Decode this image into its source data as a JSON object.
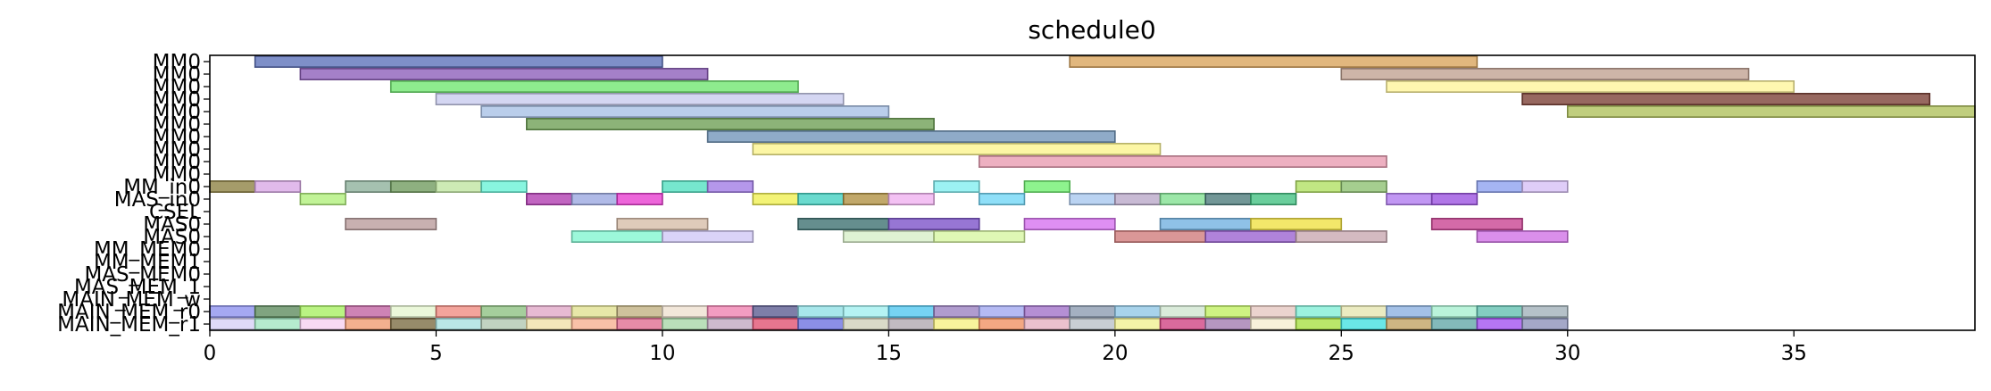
{
  "chart_data": {
    "type": "gantt",
    "title": "schedule0",
    "xlabel": "",
    "ylabel": "",
    "xlim": [
      0,
      39
    ],
    "x_ticks": [
      0,
      5,
      10,
      15,
      20,
      25,
      30,
      35
    ],
    "grid": false,
    "rows": [
      "MM0",
      "MM0",
      "MM0",
      "MM0",
      "MM0",
      "MM0",
      "MM0",
      "MM0",
      "MM0",
      "MM0",
      "MM_in0",
      "MAS_in0",
      "CSEL",
      "MAS0",
      "MAS0",
      "MM_MEM0",
      "MM_MEM1",
      "MAS_MEM0",
      "MAS_MEM_1",
      "MAIN_MEM_w",
      "MAIN_MEM_r0",
      "MAIN_MEM_r1"
    ],
    "tasks": [
      {
        "row": 0,
        "start": 1,
        "end": 10,
        "color": "#5a6fb8"
      },
      {
        "row": 0,
        "start": 19,
        "end": 28,
        "color": "#d9a35a"
      },
      {
        "row": 1,
        "start": 2,
        "end": 11,
        "color": "#8c5cb8"
      },
      {
        "row": 1,
        "start": 25,
        "end": 34,
        "color": "#c0a090"
      },
      {
        "row": 2,
        "start": 4,
        "end": 13,
        "color": "#6ee66e"
      },
      {
        "row": 2,
        "start": 26,
        "end": 35,
        "color": "#fff59a"
      },
      {
        "row": 3,
        "start": 5,
        "end": 14,
        "color": "#c8cbee"
      },
      {
        "row": 3,
        "start": 29,
        "end": 38,
        "color": "#7a3d33"
      },
      {
        "row": 4,
        "start": 6,
        "end": 15,
        "color": "#a6c0e6"
      },
      {
        "row": 4,
        "start": 30,
        "end": 39,
        "color": "#aec05a"
      },
      {
        "row": 5,
        "start": 7,
        "end": 16,
        "color": "#6b9e52"
      },
      {
        "row": 6,
        "start": 11,
        "end": 20,
        "color": "#6f93b8"
      },
      {
        "row": 7,
        "start": 12,
        "end": 21,
        "color": "#fbf48c"
      },
      {
        "row": 8,
        "start": 17,
        "end": 26,
        "color": "#e89ab0"
      },
      {
        "row": 10,
        "start": 0,
        "end": 1,
        "color": "#8c8040"
      },
      {
        "row": 10,
        "start": 1,
        "end": 2,
        "color": "#d9a6e6"
      },
      {
        "row": 10,
        "start": 3,
        "end": 4,
        "color": "#8cb09a"
      },
      {
        "row": 10,
        "start": 4,
        "end": 5,
        "color": "#6e9a5c"
      },
      {
        "row": 10,
        "start": 5,
        "end": 6,
        "color": "#bfe6a0"
      },
      {
        "row": 10,
        "start": 6,
        "end": 7,
        "color": "#66f2d6"
      },
      {
        "row": 10,
        "start": 10,
        "end": 11,
        "color": "#4fe0c0"
      },
      {
        "row": 10,
        "start": 11,
        "end": 12,
        "color": "#a07ae6"
      },
      {
        "row": 10,
        "start": 16,
        "end": 17,
        "color": "#80eef0"
      },
      {
        "row": 10,
        "start": 18,
        "end": 19,
        "color": "#6ef06e"
      },
      {
        "row": 10,
        "start": 24,
        "end": 25,
        "color": "#b0e060"
      },
      {
        "row": 10,
        "start": 25,
        "end": 26,
        "color": "#8cc070"
      },
      {
        "row": 10,
        "start": 28,
        "end": 29,
        "color": "#8ca0f0"
      },
      {
        "row": 10,
        "start": 29,
        "end": 30,
        "color": "#d6bff6"
      },
      {
        "row": 11,
        "start": 2,
        "end": 3,
        "color": "#b0f07a"
      },
      {
        "row": 11,
        "start": 7,
        "end": 8,
        "color": "#b03ab0"
      },
      {
        "row": 11,
        "start": 8,
        "end": 9,
        "color": "#9aa6e0"
      },
      {
        "row": 11,
        "start": 9,
        "end": 10,
        "color": "#e83ad0"
      },
      {
        "row": 11,
        "start": 12,
        "end": 13,
        "color": "#f0f050"
      },
      {
        "row": 11,
        "start": 13,
        "end": 14,
        "color": "#40d0c0"
      },
      {
        "row": 11,
        "start": 14,
        "end": 15,
        "color": "#b09040"
      },
      {
        "row": 11,
        "start": 15,
        "end": 16,
        "color": "#f0b0f0"
      },
      {
        "row": 11,
        "start": 17,
        "end": 18,
        "color": "#70d6f6"
      },
      {
        "row": 11,
        "start": 19,
        "end": 20,
        "color": "#a6c6ee"
      },
      {
        "row": 11,
        "start": 20,
        "end": 21,
        "color": "#b8a6c8"
      },
      {
        "row": 11,
        "start": 21,
        "end": 22,
        "color": "#80e090"
      },
      {
        "row": 11,
        "start": 22,
        "end": 23,
        "color": "#4a7a7a"
      },
      {
        "row": 11,
        "start": 23,
        "end": 24,
        "color": "#40c080"
      },
      {
        "row": 11,
        "start": 26,
        "end": 27,
        "color": "#b07af0"
      },
      {
        "row": 11,
        "start": 27,
        "end": 28,
        "color": "#9a50e0"
      },
      {
        "row": 13,
        "start": 3,
        "end": 5,
        "color": "#b89a9a"
      },
      {
        "row": 13,
        "start": 9,
        "end": 11,
        "color": "#d6bca6"
      },
      {
        "row": 13,
        "start": 13,
        "end": 15,
        "color": "#3a6e6e"
      },
      {
        "row": 13,
        "start": 15,
        "end": 17,
        "color": "#7a50c8"
      },
      {
        "row": 13,
        "start": 18,
        "end": 20,
        "color": "#d670f0"
      },
      {
        "row": 13,
        "start": 21,
        "end": 23,
        "color": "#70b0e0"
      },
      {
        "row": 13,
        "start": 23,
        "end": 25,
        "color": "#f0e040"
      },
      {
        "row": 13,
        "start": 27,
        "end": 29,
        "color": "#c84090"
      },
      {
        "row": 14,
        "start": 8,
        "end": 10,
        "color": "#80f6d0"
      },
      {
        "row": 14,
        "start": 10,
        "end": 12,
        "color": "#d0c6f6"
      },
      {
        "row": 14,
        "start": 14,
        "end": 16,
        "color": "#d6eec6"
      },
      {
        "row": 14,
        "start": 16,
        "end": 18,
        "color": "#d6f6a0"
      },
      {
        "row": 14,
        "start": 20,
        "end": 22,
        "color": "#d07a7a"
      },
      {
        "row": 14,
        "start": 22,
        "end": 24,
        "color": "#9a60d0"
      },
      {
        "row": 14,
        "start": 24,
        "end": 26,
        "color": "#c8a6b0"
      },
      {
        "row": 14,
        "start": 28,
        "end": 30,
        "color": "#d070e6"
      },
      {
        "row": 20,
        "start": 0,
        "end": 1,
        "color": "#8c90ee"
      },
      {
        "row": 20,
        "start": 1,
        "end": 2,
        "color": "#5c8a5c"
      },
      {
        "row": 20,
        "start": 2,
        "end": 3,
        "color": "#a6f060"
      },
      {
        "row": 20,
        "start": 3,
        "end": 4,
        "color": "#c060a0"
      },
      {
        "row": 20,
        "start": 4,
        "end": 5,
        "color": "#e6f6d0"
      },
      {
        "row": 20,
        "start": 5,
        "end": 6,
        "color": "#f08a80"
      },
      {
        "row": 20,
        "start": 6,
        "end": 7,
        "color": "#8cc080"
      },
      {
        "row": 20,
        "start": 7,
        "end": 8,
        "color": "#e0a6c6"
      },
      {
        "row": 20,
        "start": 8,
        "end": 9,
        "color": "#e0e090"
      },
      {
        "row": 20,
        "start": 9,
        "end": 10,
        "color": "#c0b080"
      },
      {
        "row": 20,
        "start": 10,
        "end": 11,
        "color": "#eee0d0"
      },
      {
        "row": 20,
        "start": 11,
        "end": 12,
        "color": "#f080b0"
      },
      {
        "row": 20,
        "start": 12,
        "end": 13,
        "color": "#5a5a90"
      },
      {
        "row": 20,
        "start": 13,
        "end": 14,
        "color": "#90e0e6"
      },
      {
        "row": 20,
        "start": 14,
        "end": 15,
        "color": "#a0f0f0"
      },
      {
        "row": 20,
        "start": 15,
        "end": 16,
        "color": "#50c6f0"
      },
      {
        "row": 20,
        "start": 16,
        "end": 17,
        "color": "#9a80c0"
      },
      {
        "row": 20,
        "start": 17,
        "end": 18,
        "color": "#a0a6f0"
      },
      {
        "row": 20,
        "start": 18,
        "end": 19,
        "color": "#a070c8"
      },
      {
        "row": 20,
        "start": 19,
        "end": 20,
        "color": "#8a9ab0"
      },
      {
        "row": 20,
        "start": 20,
        "end": 21,
        "color": "#90c6e6"
      },
      {
        "row": 20,
        "start": 21,
        "end": 22,
        "color": "#d0e6d0"
      },
      {
        "row": 20,
        "start": 22,
        "end": 23,
        "color": "#c0f060"
      },
      {
        "row": 20,
        "start": 23,
        "end": 24,
        "color": "#e6c6c0"
      },
      {
        "row": 20,
        "start": 24,
        "end": 25,
        "color": "#80eed6"
      },
      {
        "row": 20,
        "start": 25,
        "end": 26,
        "color": "#e6e6b0"
      },
      {
        "row": 20,
        "start": 26,
        "end": 27,
        "color": "#8ab0e0"
      },
      {
        "row": 20,
        "start": 27,
        "end": 28,
        "color": "#a6f0d0"
      },
      {
        "row": 20,
        "start": 28,
        "end": 29,
        "color": "#60c0b0"
      },
      {
        "row": 20,
        "start": 29,
        "end": 30,
        "color": "#a0b0b8"
      },
      {
        "row": 21,
        "start": 0,
        "end": 1,
        "color": "#d6d0f6"
      },
      {
        "row": 21,
        "start": 1,
        "end": 2,
        "color": "#a0e6c0"
      },
      {
        "row": 21,
        "start": 2,
        "end": 3,
        "color": "#f6d0f0"
      },
      {
        "row": 21,
        "start": 3,
        "end": 4,
        "color": "#f09a70"
      },
      {
        "row": 21,
        "start": 4,
        "end": 5,
        "color": "#7a6a40"
      },
      {
        "row": 21,
        "start": 5,
        "end": 6,
        "color": "#a6e0e0"
      },
      {
        "row": 21,
        "start": 6,
        "end": 7,
        "color": "#b0c6b0"
      },
      {
        "row": 21,
        "start": 7,
        "end": 8,
        "color": "#f0e0a6"
      },
      {
        "row": 21,
        "start": 8,
        "end": 9,
        "color": "#f6b090"
      },
      {
        "row": 21,
        "start": 9,
        "end": 10,
        "color": "#e06a90"
      },
      {
        "row": 21,
        "start": 10,
        "end": 11,
        "color": "#a6d6a6"
      },
      {
        "row": 21,
        "start": 11,
        "end": 12,
        "color": "#c0a6c0"
      },
      {
        "row": 21,
        "start": 12,
        "end": 13,
        "color": "#e05070"
      },
      {
        "row": 21,
        "start": 13,
        "end": 14,
        "color": "#6a70e0"
      },
      {
        "row": 21,
        "start": 14,
        "end": 15,
        "color": "#d0d0b8"
      },
      {
        "row": 21,
        "start": 15,
        "end": 16,
        "color": "#b0a6b0"
      },
      {
        "row": 21,
        "start": 16,
        "end": 17,
        "color": "#f6f080"
      },
      {
        "row": 21,
        "start": 17,
        "end": 18,
        "color": "#f09060"
      },
      {
        "row": 21,
        "start": 18,
        "end": 19,
        "color": "#e6b0c0"
      },
      {
        "row": 21,
        "start": 19,
        "end": 20,
        "color": "#b8c0c8"
      },
      {
        "row": 21,
        "start": 20,
        "end": 21,
        "color": "#f0f090"
      },
      {
        "row": 21,
        "start": 21,
        "end": 22,
        "color": "#d04080"
      },
      {
        "row": 21,
        "start": 22,
        "end": 23,
        "color": "#a07ab0"
      },
      {
        "row": 21,
        "start": 23,
        "end": 24,
        "color": "#f6eed0"
      },
      {
        "row": 21,
        "start": 24,
        "end": 25,
        "color": "#a6e040"
      },
      {
        "row": 21,
        "start": 25,
        "end": 26,
        "color": "#40e0e0"
      },
      {
        "row": 21,
        "start": 26,
        "end": 27,
        "color": "#c0a060"
      },
      {
        "row": 21,
        "start": 27,
        "end": 28,
        "color": "#60a6a6"
      },
      {
        "row": 21,
        "start": 28,
        "end": 29,
        "color": "#a050f0"
      },
      {
        "row": 21,
        "start": 29,
        "end": 30,
        "color": "#8a90b8"
      }
    ]
  }
}
